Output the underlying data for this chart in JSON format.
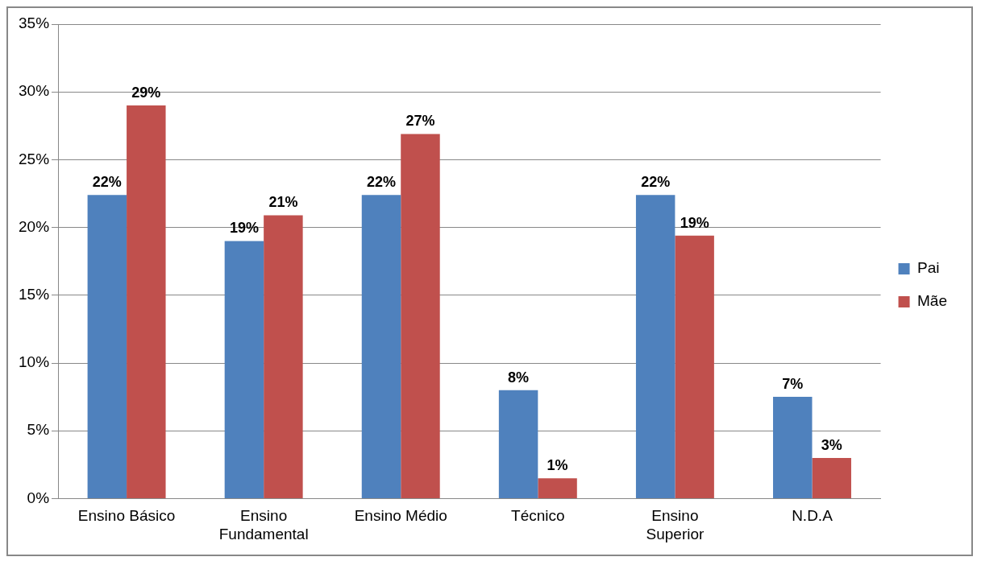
{
  "chart_data": {
    "type": "bar",
    "categories": [
      "Ensino Básico",
      "Ensino Fundamental",
      "Ensino Médio",
      "Técnico",
      "Ensino Superior",
      "N.D.A"
    ],
    "series": [
      {
        "name": "Pai",
        "color": "#4f81bd",
        "values": [
          22.4,
          19,
          22.4,
          8,
          22.4,
          7.5
        ],
        "value_labels": [
          "22%",
          "19%",
          "22%",
          "8%",
          "22%",
          "7%"
        ]
      },
      {
        "name": "Mãe",
        "color": "#c0504d",
        "values": [
          29,
          20.9,
          26.9,
          1.5,
          19.4,
          3
        ],
        "value_labels": [
          "29%",
          "21%",
          "27%",
          "1%",
          "19%",
          "3%"
        ]
      }
    ],
    "ylim": [
      0,
      35
    ],
    "yticks": [
      {
        "value": 0,
        "label": "0%"
      },
      {
        "value": 5,
        "label": "5%"
      },
      {
        "value": 10,
        "label": "10%"
      },
      {
        "value": 15,
        "label": "15%"
      },
      {
        "value": 20,
        "label": "20%"
      },
      {
        "value": 25,
        "label": "25%"
      },
      {
        "value": 30,
        "label": "30%"
      },
      {
        "value": 35,
        "label": "35%"
      }
    ],
    "grid": "y",
    "legend": "right"
  }
}
